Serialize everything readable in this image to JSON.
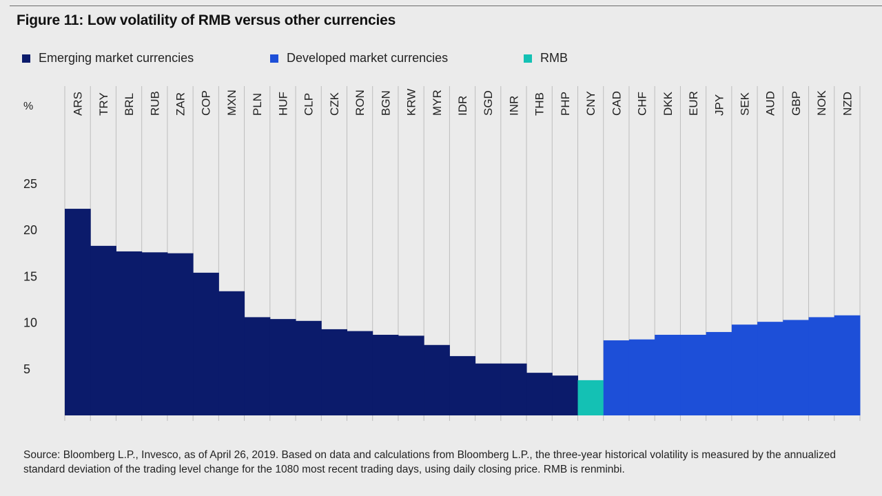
{
  "title": "Figure 11: Low volatility of RMB versus other currencies",
  "legend": [
    {
      "label": "Emerging market currencies",
      "color": "#0b1b6b"
    },
    {
      "label": "Developed market currencies",
      "color": "#1d4fd8"
    },
    {
      "label": "RMB",
      "color": "#14c1b4"
    }
  ],
  "unit_label": "%",
  "source": "Source: Bloomberg L.P., Invesco, as of April 26, 2019. Based on data and calculations from Bloomberg L.P., the three-year historical volatility is measured by the annualized standard deviation of the trading level change for the 1080 most recent trading days, using daily closing price. RMB is renminbi.",
  "colors": {
    "background": "#ebebeb",
    "gridline": "#bdbdbd",
    "emerging": "#0b1b6b",
    "developed": "#1d4fd8",
    "rmb": "#14c1b4"
  },
  "chart_data": {
    "type": "bar",
    "title": "Figure 11: Low volatility of RMB versus other currencies",
    "xlabel": "",
    "ylabel": "%",
    "ylim": [
      0,
      25
    ],
    "yticks": [
      5,
      10,
      15,
      20,
      25
    ],
    "grid": "vertical separators between categories",
    "legend_position": "top-left",
    "categories": [
      "ARS",
      "TRY",
      "BRL",
      "RUB",
      "ZAR",
      "COP",
      "MXN",
      "PLN",
      "HUF",
      "CLP",
      "CZK",
      "RON",
      "BGN",
      "KRW",
      "MYR",
      "IDR",
      "SGD",
      "INR",
      "THB",
      "PHP",
      "CNY",
      "CAD",
      "CHF",
      "DKK",
      "EUR",
      "JPY",
      "SEK",
      "AUD",
      "GBP",
      "NOK",
      "NZD"
    ],
    "groups": [
      "Emerging market currencies",
      "Emerging market currencies",
      "Emerging market currencies",
      "Emerging market currencies",
      "Emerging market currencies",
      "Emerging market currencies",
      "Emerging market currencies",
      "Emerging market currencies",
      "Emerging market currencies",
      "Emerging market currencies",
      "Emerging market currencies",
      "Emerging market currencies",
      "Emerging market currencies",
      "Emerging market currencies",
      "Emerging market currencies",
      "Emerging market currencies",
      "Emerging market currencies",
      "Emerging market currencies",
      "Emerging market currencies",
      "Emerging market currencies",
      "RMB",
      "Developed market currencies",
      "Developed market currencies",
      "Developed market currencies",
      "Developed market currencies",
      "Developed market currencies",
      "Developed market currencies",
      "Developed market currencies",
      "Developed market currencies",
      "Developed market currencies",
      "Developed market currencies"
    ],
    "values": [
      22.3,
      18.3,
      17.7,
      17.6,
      17.5,
      15.4,
      13.4,
      10.6,
      10.4,
      10.2,
      9.3,
      9.1,
      8.7,
      8.6,
      7.6,
      6.4,
      5.6,
      5.6,
      4.6,
      4.3,
      3.8,
      8.1,
      8.2,
      8.7,
      8.7,
      9.0,
      9.8,
      10.1,
      10.3,
      10.6,
      10.8
    ]
  }
}
